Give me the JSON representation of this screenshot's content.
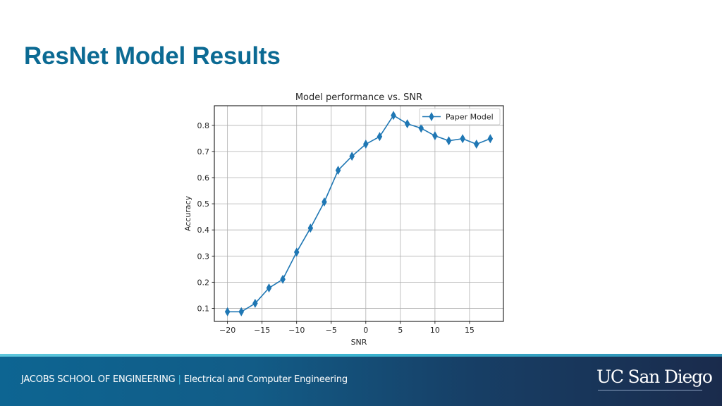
{
  "slide": {
    "title": "ResNet Model Results"
  },
  "footer": {
    "school": "JACOBS SCHOOL OF ENGINEERING",
    "separator": "|",
    "department": "Electrical and Computer Engineering",
    "logo": "UC San Diego",
    "colors": {
      "gradient_start": "#0d6592",
      "gradient_end": "#1a2b4c",
      "stripe": "#3bb3cf",
      "separator": "#3fb9de"
    }
  },
  "chart_data": {
    "type": "line",
    "title": "Model performance vs. SNR",
    "xlabel": "SNR",
    "ylabel": "Accuracy",
    "x": [
      -20,
      -18,
      -16,
      -14,
      -12,
      -10,
      -8,
      -6,
      -4,
      -2,
      0,
      2,
      4,
      6,
      8,
      10,
      12,
      14,
      16,
      18
    ],
    "series": [
      {
        "name": "Paper Model",
        "color": "#1f77b4",
        "marker": "thin_diamond",
        "values": [
          0.087,
          0.087,
          0.119,
          0.178,
          0.211,
          0.315,
          0.407,
          0.507,
          0.628,
          0.682,
          0.728,
          0.757,
          0.838,
          0.806,
          0.789,
          0.76,
          0.741,
          0.749,
          0.728,
          0.749
        ]
      }
    ],
    "xticks": [
      -20,
      -15,
      -10,
      -5,
      0,
      5,
      10,
      15
    ],
    "xtick_labels": [
      "−20",
      "−15",
      "−10",
      "−5",
      "0",
      "5",
      "10",
      "15"
    ],
    "yticks": [
      0.1,
      0.2,
      0.3,
      0.4,
      0.5,
      0.6,
      0.7,
      0.8
    ],
    "ytick_labels": [
      "0.1",
      "0.2",
      "0.3",
      "0.4",
      "0.5",
      "0.6",
      "0.7",
      "0.8"
    ],
    "xlim": [
      -21.9,
      19.9
    ],
    "ylim": [
      0.05,
      0.875
    ],
    "grid": true,
    "legend_position": "upper right"
  }
}
